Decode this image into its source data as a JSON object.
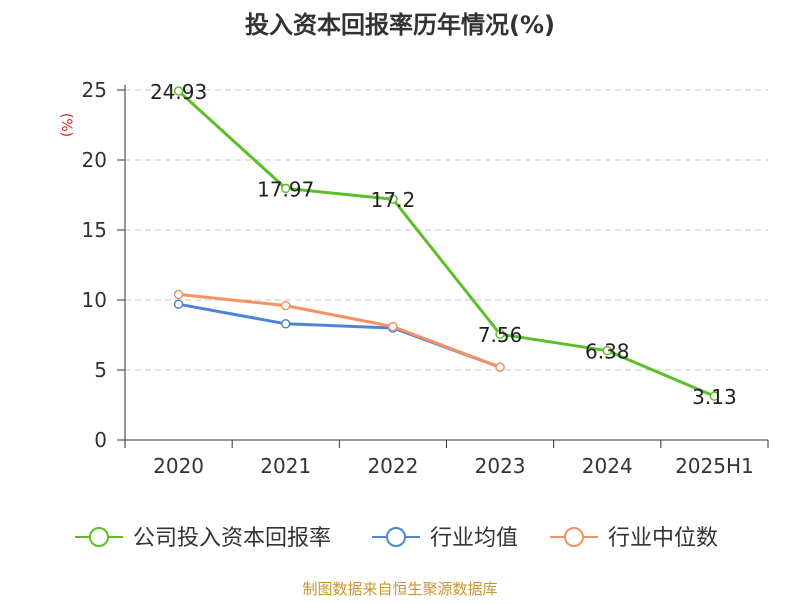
{
  "chart_data": {
    "type": "line",
    "title": "投入资本回报率历年情况(%)",
    "ylabel": "(%)",
    "xlabel": "",
    "categories": [
      "2020",
      "2021",
      "2022",
      "2023",
      "2024",
      "2025H1"
    ],
    "ylim": [
      0,
      25
    ],
    "yticks": [
      0,
      5,
      10,
      15,
      20,
      25
    ],
    "grid": true,
    "legend_position": "bottom",
    "series": [
      {
        "name": "公司投入资本回报率",
        "color": "#5cbf2a",
        "values": [
          24.93,
          17.97,
          17.2,
          7.56,
          6.38,
          3.13
        ],
        "labels": [
          "24.93",
          "17.97",
          "17.2",
          "7.56",
          "6.38",
          "3.13"
        ]
      },
      {
        "name": "行业均值",
        "color": "#4e83d6",
        "values": [
          9.7,
          8.3,
          8.0,
          5.2,
          null,
          null
        ]
      },
      {
        "name": "行业中位数",
        "color": "#f39262",
        "values": [
          10.4,
          9.6,
          8.1,
          5.2,
          null,
          null
        ]
      }
    ]
  },
  "footer": {
    "source": "制图数据来自恒生聚源数据库"
  }
}
